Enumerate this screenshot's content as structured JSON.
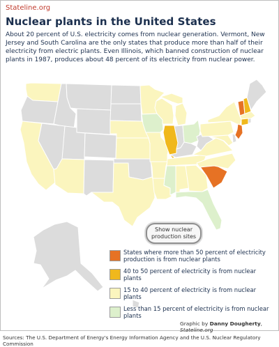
{
  "header": {
    "brand": "Stateline.org",
    "title": "Nuclear plants in the United States",
    "intro": "About 20 percent of U.S. electricity comes from nuclear generation. Vermont, New Jersey and South Carolina are the only states that produce more than half of their electricity from electric plants. Even Illinois, which banned construction of nuclear plants in 1987, produces about 48 percent of its electricity from nuclear power."
  },
  "map": {
    "colors": {
      "over50": "#e67224",
      "40to50": "#f0b81c",
      "15to40": "#fbf5be",
      "under15": "#ddf0cc",
      "none": "#dcdcdc",
      "border": "#ffffff",
      "water": "#ffffff"
    },
    "categories": {
      "over50": [
        "VT",
        "NJ",
        "SC"
      ],
      "40to50": [
        "IL",
        "NH",
        "CT"
      ],
      "15to40": [
        "WA",
        "CA",
        "AZ",
        "MN",
        "WI",
        "MI",
        "NE",
        "KS",
        "MO",
        "AR",
        "LA",
        "TX",
        "TN",
        "NC",
        "VA",
        "MD",
        "PA",
        "NY",
        "MA",
        "GA",
        "AL"
      ],
      "under15": [
        "IA",
        "OH",
        "MS",
        "FL"
      ],
      "none": [
        "OR",
        "NV",
        "ID",
        "MT",
        "WY",
        "UT",
        "CO",
        "NM",
        "ND",
        "SD",
        "OK",
        "KY",
        "WV",
        "IN",
        "ME",
        "RI",
        "DE",
        "AK",
        "HI"
      ]
    }
  },
  "button": {
    "label": "Show nuclear production sites"
  },
  "legend": {
    "items": [
      {
        "key": "over50",
        "color": "#e67224",
        "label": "States where more than 50 percent of electricity production is from nuclear plants"
      },
      {
        "key": "40to50",
        "color": "#f0b81c",
        "label": "40 to 50 percent of electricity is from nuclear plants"
      },
      {
        "key": "15to40",
        "color": "#fbf5be",
        "label": "15 to 40 percent of electricity is from nuclear plants"
      },
      {
        "key": "under15",
        "color": "#ddf0cc",
        "label": "Less than 15 percent of electricity is from nuclear plants"
      }
    ]
  },
  "credit": {
    "prefix": "Graphic by ",
    "author": "Danny Dougherty",
    "separator": ", ",
    "site": "Stateline.org"
  },
  "sources": "Sources: The U.S. Department of Energy's Energy Information Agency and the U.S. Nuclear Regulatory Commission"
}
